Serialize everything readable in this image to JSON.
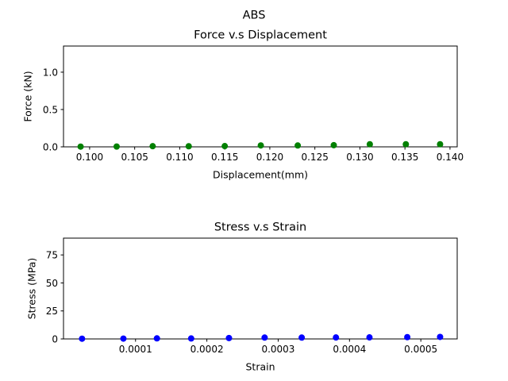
{
  "figure": {
    "suptitle": "ABS"
  },
  "chart_data": [
    {
      "type": "scatter",
      "title": "Force v.s Displacement",
      "xlabel": "Displacement(mm)",
      "ylabel": "Force (kN)",
      "xlim": [
        0.0971,
        0.1408
      ],
      "ylim": [
        0,
        1.35
      ],
      "xticks": [
        0.1,
        0.105,
        0.11,
        0.115,
        0.12,
        0.125,
        0.13,
        0.135,
        0.14
      ],
      "xtick_labels": [
        "0.100",
        "0.105",
        "0.110",
        "0.115",
        "0.120",
        "0.125",
        "0.130",
        "0.135",
        "0.140"
      ],
      "yticks": [
        0.0,
        0.5,
        1.0
      ],
      "ytick_labels": [
        "0.0",
        "0.5",
        "1.0"
      ],
      "grid": false,
      "series": [
        {
          "color": "#008000",
          "x": [
            0.099,
            0.103,
            0.107,
            0.111,
            0.115,
            0.119,
            0.1231,
            0.1271,
            0.1311,
            0.1351,
            0.1389
          ],
          "y": [
            0.003,
            0.004,
            0.009,
            0.008,
            0.01,
            0.019,
            0.018,
            0.022,
            0.035,
            0.035,
            0.035
          ]
        }
      ]
    },
    {
      "type": "scatter",
      "title": "Stress v.s Strain",
      "xlabel": "Strain",
      "ylabel": "Stress (MPa)",
      "xlim": [
        -1e-06,
        0.000551
      ],
      "ylim": [
        0,
        90
      ],
      "xticks": [
        0.0001,
        0.0002,
        0.0003,
        0.0004,
        0.0005
      ],
      "xtick_labels": [
        "0.0001",
        "0.0002",
        "0.0003",
        "0.0004",
        "0.0005"
      ],
      "yticks": [
        0,
        25,
        50,
        75
      ],
      "ytick_labels": [
        "0",
        "25",
        "50",
        "75"
      ],
      "grid": false,
      "series": [
        {
          "color": "#0000ff",
          "x": [
            2.5e-05,
            8.3e-05,
            0.00013,
            0.000178,
            0.000231,
            0.000281,
            0.000333,
            0.000381,
            0.000428,
            0.000481,
            0.000527
          ],
          "y": [
            0.2,
            0.3,
            0.5,
            0.4,
            0.8,
            1.2,
            1.2,
            1.3,
            1.4,
            1.6,
            1.8
          ]
        }
      ]
    }
  ]
}
